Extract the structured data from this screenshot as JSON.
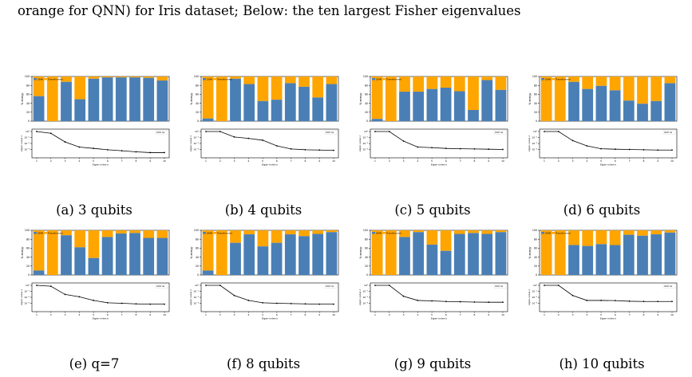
{
  "figure": {
    "caption_top": "orange for QNN) for Iris dataset; Below: the ten largest Fisher eigenvalues"
  },
  "colors": {
    "blue": "#4a7fb5",
    "orange": "#ffa500",
    "line": "#000000"
  },
  "chart_data": [
    {
      "type": "bar+line",
      "caption": "(a) 3 qubits",
      "bar_ylabel": "% energy",
      "bar_ylim": [
        0,
        100
      ],
      "bar_yticks": [
        "0",
        "20",
        "40",
        "60",
        "80",
        "100"
      ],
      "legend_labels": [
        "QNN",
        "Transformed"
      ],
      "categories": [
        "1",
        "2",
        "3",
        "4",
        "5",
        "6",
        "7",
        "8",
        "9",
        "10"
      ],
      "blue_values": [
        56,
        0,
        88,
        49,
        95,
        98,
        98,
        98,
        97,
        91
      ],
      "line_ylabel": "eigen-value λ",
      "line_xlabel": "Eigen-index k",
      "line_legend": "λk",
      "line_values": [
        1.0,
        0.5,
        0.018,
        0.0025,
        0.0015,
        0.0009,
        0.0006,
        0.0004,
        0.0003,
        0.0003
      ],
      "line_ylim": [
        0.0001,
        1
      ],
      "line_yticks": [
        "10⁰",
        "10⁻¹",
        "10⁻²",
        "10⁻³"
      ]
    },
    {
      "type": "bar+line",
      "caption": "(b) 4 qubits",
      "bar_ylabel": "% energy",
      "bar_ylim": [
        0,
        100
      ],
      "bar_yticks": [
        "0",
        "20",
        "40",
        "60",
        "80",
        "100"
      ],
      "legend_labels": [
        "QNN",
        "Transformed"
      ],
      "categories": [
        "1",
        "2",
        "3",
        "4",
        "5",
        "6",
        "7",
        "8",
        "9",
        "10"
      ],
      "blue_values": [
        6,
        0,
        95,
        83,
        45,
        48,
        85,
        77,
        53,
        83
      ],
      "line_ylabel": "eigen-value λ",
      "line_xlabel": "Eigen-index k",
      "line_legend": "λk",
      "line_values": [
        1.0,
        1.0,
        0.12,
        0.07,
        0.035,
        0.004,
        0.0012,
        0.0009,
        0.0008,
        0.0007
      ],
      "line_ylim": [
        0.0001,
        1
      ],
      "line_yticks": [
        "10⁰",
        "10⁻¹",
        "10⁻²",
        "10⁻³"
      ]
    },
    {
      "type": "bar+line",
      "caption": "(c) 5 qubits",
      "bar_ylabel": "% energy",
      "bar_ylim": [
        0,
        100
      ],
      "bar_yticks": [
        "0",
        "20",
        "40",
        "60",
        "80",
        "100"
      ],
      "legend_labels": [
        "QNN",
        "Transformed"
      ],
      "categories": [
        "1",
        "2",
        "3",
        "4",
        "5",
        "6",
        "7",
        "8",
        "9",
        "10"
      ],
      "blue_values": [
        5,
        0,
        66,
        66,
        72,
        75,
        67,
        25,
        92,
        70
      ],
      "line_ylabel": "eigen-value λ",
      "line_xlabel": "Eigen-index k",
      "line_legend": "λk",
      "line_values": [
        1.0,
        1.0,
        0.025,
        0.0025,
        0.002,
        0.0015,
        0.0013,
        0.0012,
        0.0011,
        0.001
      ],
      "line_ylim": [
        0.0001,
        1
      ],
      "line_yticks": [
        "10⁰",
        "10⁻¹",
        "10⁻²",
        "10⁻³"
      ]
    },
    {
      "type": "bar+line",
      "caption": "(d) 6 qubits",
      "bar_ylabel": "% energy",
      "bar_ylim": [
        0,
        100
      ],
      "bar_yticks": [
        "0",
        "20",
        "40",
        "60",
        "80",
        "100"
      ],
      "legend_labels": [
        "QNN",
        "Transformed"
      ],
      "categories": [
        "1",
        "2",
        "3",
        "4",
        "5",
        "6",
        "7",
        "8",
        "9",
        "10"
      ],
      "blue_values": [
        0,
        0,
        88,
        72,
        79,
        69,
        46,
        39,
        45,
        85
      ],
      "line_ylabel": "eigen-value λ",
      "line_xlabel": "Eigen-index k",
      "line_legend": "λk",
      "line_values": [
        1.0,
        1.0,
        0.03,
        0.004,
        0.0013,
        0.0011,
        0.001,
        0.0009,
        0.0008,
        0.0008
      ],
      "line_ylim": [
        0.0001,
        1
      ],
      "line_yticks": [
        "10⁰",
        "10⁻¹",
        "10⁻²",
        "10⁻³"
      ]
    },
    {
      "type": "bar+line",
      "caption": "(e) q=7",
      "bar_ylabel": "% energy",
      "bar_ylim": [
        0,
        100
      ],
      "bar_yticks": [
        "0",
        "20",
        "40",
        "60",
        "80",
        "100"
      ],
      "legend_labels": [
        "QNN",
        "Transformed"
      ],
      "categories": [
        "1",
        "2",
        "3",
        "4",
        "5",
        "6",
        "7",
        "8",
        "9",
        "10"
      ],
      "blue_values": [
        10,
        0,
        89,
        62,
        38,
        85,
        93,
        94,
        83,
        83
      ],
      "line_ylabel": "eigen-value λ",
      "line_xlabel": "Eigen-index k",
      "line_legend": "λk",
      "line_values": [
        1.0,
        0.7,
        0.03,
        0.012,
        0.003,
        0.0012,
        0.001,
        0.0008,
        0.0007,
        0.0007
      ],
      "line_ylim": [
        0.0001,
        1
      ],
      "line_yticks": [
        "10⁰",
        "10⁻¹",
        "10⁻²",
        "10⁻³"
      ]
    },
    {
      "type": "bar+line",
      "caption": "(f) 8 qubits",
      "bar_ylabel": "% energy",
      "bar_ylim": [
        0,
        100
      ],
      "bar_yticks": [
        "0",
        "20",
        "40",
        "60",
        "80",
        "100"
      ],
      "legend_labels": [
        "QNN",
        "Transformed"
      ],
      "categories": [
        "1",
        "2",
        "3",
        "4",
        "5",
        "6",
        "7",
        "8",
        "9",
        "10"
      ],
      "blue_values": [
        10,
        0,
        72,
        91,
        64,
        72,
        91,
        87,
        92,
        96
      ],
      "line_ylabel": "eigen-value λ",
      "line_xlabel": "Eigen-index k",
      "line_legend": "λk",
      "line_values": [
        1.0,
        1.0,
        0.02,
        0.003,
        0.0012,
        0.001,
        0.0009,
        0.0008,
        0.0007,
        0.0007
      ],
      "line_ylim": [
        0.0001,
        1
      ],
      "line_yticks": [
        "10⁰",
        "10⁻¹",
        "10⁻²",
        "10⁻³"
      ]
    },
    {
      "type": "bar+line",
      "caption": "(g) 9 qubits",
      "bar_ylabel": "% energy",
      "bar_ylim": [
        0,
        100
      ],
      "bar_yticks": [
        "0",
        "20",
        "40",
        "60",
        "80",
        "100"
      ],
      "legend_labels": [
        "QNN",
        "Transformed"
      ],
      "categories": [
        "1",
        "2",
        "3",
        "4",
        "5",
        "6",
        "7",
        "8",
        "9",
        "10"
      ],
      "blue_values": [
        0,
        0,
        85,
        96,
        68,
        54,
        92,
        94,
        92,
        96
      ],
      "line_ylabel": "eigen-value λ",
      "line_xlabel": "Eigen-index k",
      "line_legend": "λk",
      "line_values": [
        1.0,
        1.0,
        0.015,
        0.003,
        0.0025,
        0.002,
        0.0018,
        0.0016,
        0.0015,
        0.0015
      ],
      "line_ylim": [
        0.0001,
        1
      ],
      "line_yticks": [
        "10⁰",
        "10⁻¹",
        "10⁻²",
        "10⁻³"
      ]
    },
    {
      "type": "bar+line",
      "caption": "(h) 10 qubits",
      "bar_ylabel": "% energy",
      "bar_ylim": [
        0,
        100
      ],
      "bar_yticks": [
        "0",
        "20",
        "40",
        "60",
        "80",
        "100"
      ],
      "legend_labels": [
        "QNN",
        "Transformed"
      ],
      "categories": [
        "1",
        "2",
        "3",
        "4",
        "5",
        "6",
        "7",
        "8",
        "9",
        "10"
      ],
      "blue_values": [
        0,
        0,
        67,
        65,
        69,
        67,
        90,
        88,
        91,
        95
      ],
      "line_ylabel": "eigen-value λ",
      "line_xlabel": "Eigen-index k",
      "line_legend": "λk",
      "line_values": [
        1.0,
        1.0,
        0.02,
        0.003,
        0.003,
        0.0028,
        0.0022,
        0.002,
        0.002,
        0.002
      ],
      "line_ylim": [
        0.0001,
        1
      ],
      "line_yticks": [
        "10⁰",
        "10⁻¹",
        "10⁻²",
        "10⁻³"
      ]
    }
  ]
}
